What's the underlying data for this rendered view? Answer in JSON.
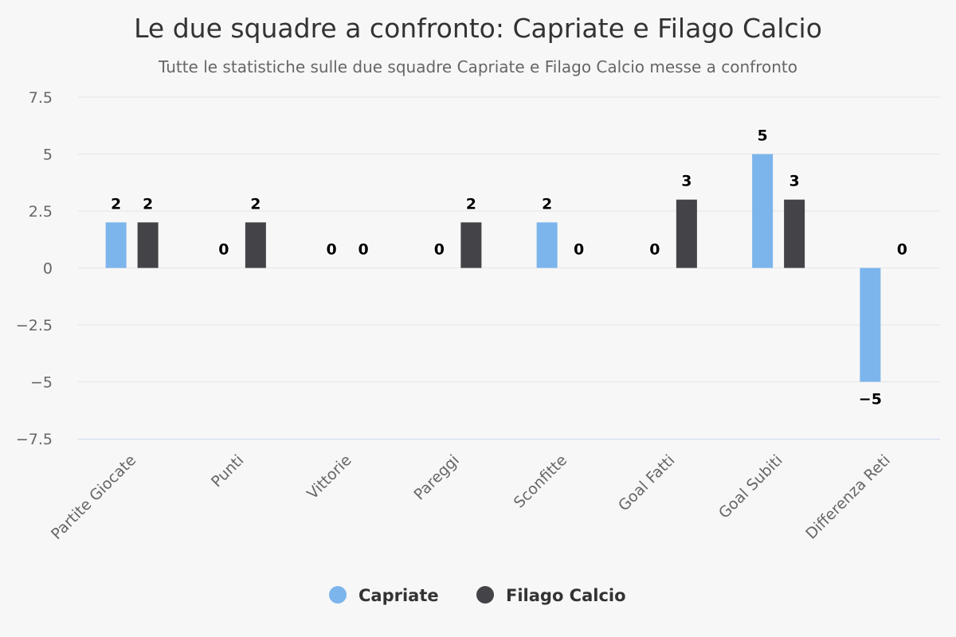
{
  "chart_data": {
    "type": "bar",
    "title": "Le due squadre a confronto: Capriate e Filago Calcio",
    "subtitle": "Tutte le statistiche sulle due squadre Capriate e Filago Calcio messe a confronto",
    "categories": [
      "Partite Giocate",
      "Punti",
      "Vittorie",
      "Pareggi",
      "Sconfitte",
      "Goal Fatti",
      "Goal Subiti",
      "Differenza Reti"
    ],
    "series": [
      {
        "name": "Capriate",
        "color": "#7cb5ec",
        "values": [
          2,
          0,
          0,
          0,
          2,
          0,
          5,
          -5
        ]
      },
      {
        "name": "Filago Calcio",
        "color": "#434348",
        "values": [
          2,
          2,
          0,
          2,
          0,
          3,
          3,
          0
        ]
      }
    ],
    "yticks": [
      7.5,
      5,
      2.5,
      0,
      -2.5,
      -5,
      -7.5
    ],
    "ytick_labels": [
      "7.5",
      "5",
      "2.5",
      "0",
      "−2.5",
      "−5",
      "−7.5"
    ],
    "data_labels": [
      [
        "2",
        "0",
        "0",
        "0",
        "2",
        "0",
        "5",
        "−5"
      ],
      [
        "2",
        "2",
        "0",
        "2",
        "0",
        "3",
        "3",
        "0"
      ]
    ],
    "ylim": [
      -7.5,
      7.5
    ],
    "grid": true,
    "legend_position": "bottom-center",
    "xlabel": "",
    "ylabel": ""
  }
}
